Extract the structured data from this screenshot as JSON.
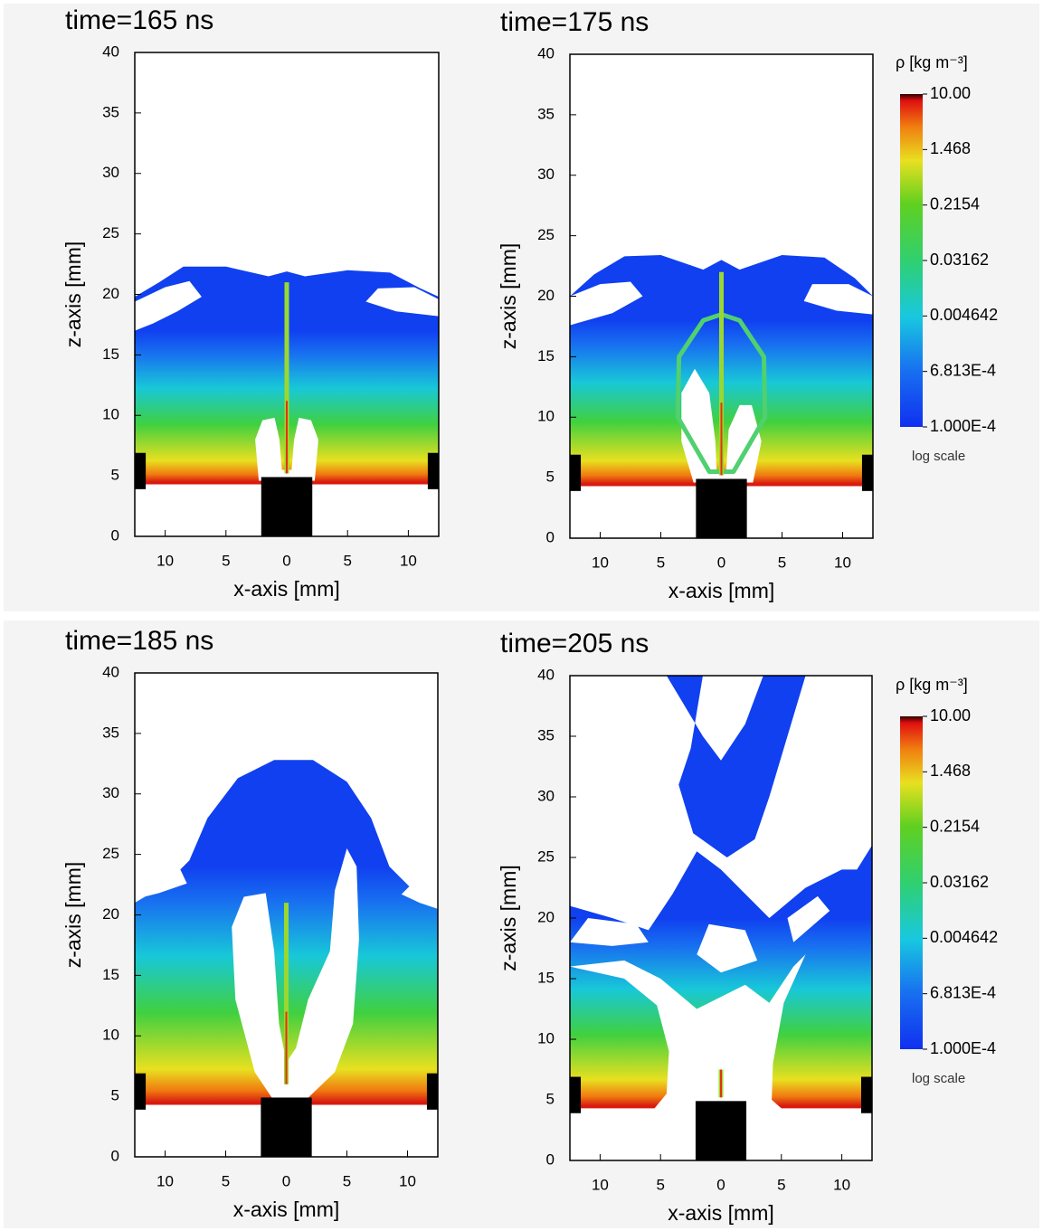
{
  "chart_data": [
    {
      "type": "density",
      "title": "time=165 ns",
      "xlabel": "x-axis [mm]",
      "ylabel": "z-axis [mm]",
      "xlim": [
        -12.5,
        12.5
      ],
      "ylim": [
        0,
        40
      ],
      "xticks": [
        {
          "value": -10,
          "label": "10"
        },
        {
          "value": -5,
          "label": "5"
        },
        0,
        5,
        10
      ],
      "yticks": [
        0,
        5,
        10,
        15,
        20,
        25,
        30,
        35,
        40
      ]
    },
    {
      "type": "density",
      "title": "time=175 ns",
      "xlabel": "x-axis [mm]",
      "ylabel": "z-axis [mm]",
      "xlim": [
        -12.5,
        12.5
      ],
      "ylim": [
        0,
        40
      ],
      "xticks": [
        {
          "value": -10,
          "label": "10"
        },
        {
          "value": -5,
          "label": "5"
        },
        0,
        5,
        10
      ],
      "yticks": [
        0,
        5,
        10,
        15,
        20,
        25,
        30,
        35,
        40
      ],
      "colorbar": {
        "label": "ρ [kg m⁻³]",
        "scale_label": "log scale",
        "log": true,
        "clim": [
          0.0001,
          10
        ],
        "ticks": [
          {
            "value": 10,
            "label": "10.00"
          },
          1.468,
          0.2154,
          0.03162,
          0.004642,
          {
            "value": 0.0006813,
            "label": "6.813E-4"
          },
          {
            "value": 0.0001,
            "label": "1.000E-4"
          }
        ]
      }
    },
    {
      "type": "density",
      "title": "time=185 ns",
      "xlabel": "x-axis [mm]",
      "ylabel": "z-axis [mm]",
      "xlim": [
        -12.5,
        12.5
      ],
      "ylim": [
        0,
        40
      ],
      "xticks": [
        {
          "value": -10,
          "label": "10"
        },
        {
          "value": -5,
          "label": "5"
        },
        0,
        5,
        10
      ],
      "yticks": [
        0,
        5,
        10,
        15,
        20,
        25,
        30,
        35,
        40
      ]
    },
    {
      "type": "density",
      "title": "time=205 ns",
      "xlabel": "x-axis [mm]",
      "ylabel": "z-axis [mm]",
      "xlim": [
        -12.5,
        12.5
      ],
      "ylim": [
        0,
        40
      ],
      "xticks": [
        {
          "value": -10,
          "label": "10"
        },
        {
          "value": -5,
          "label": "5"
        },
        0,
        5,
        10
      ],
      "yticks": [
        0,
        5,
        10,
        15,
        20,
        25,
        30,
        35,
        40
      ],
      "colorbar": {
        "label": "ρ [kg m⁻³]",
        "scale_label": "log scale",
        "log": true,
        "clim": [
          0.0001,
          10
        ],
        "ticks": [
          {
            "value": 10,
            "label": "10.00"
          },
          1.468,
          0.2154,
          0.03162,
          0.004642,
          {
            "value": 0.0006813,
            "label": "6.813E-4"
          },
          {
            "value": 0.0001,
            "label": "1.000E-4"
          }
        ]
      }
    }
  ]
}
